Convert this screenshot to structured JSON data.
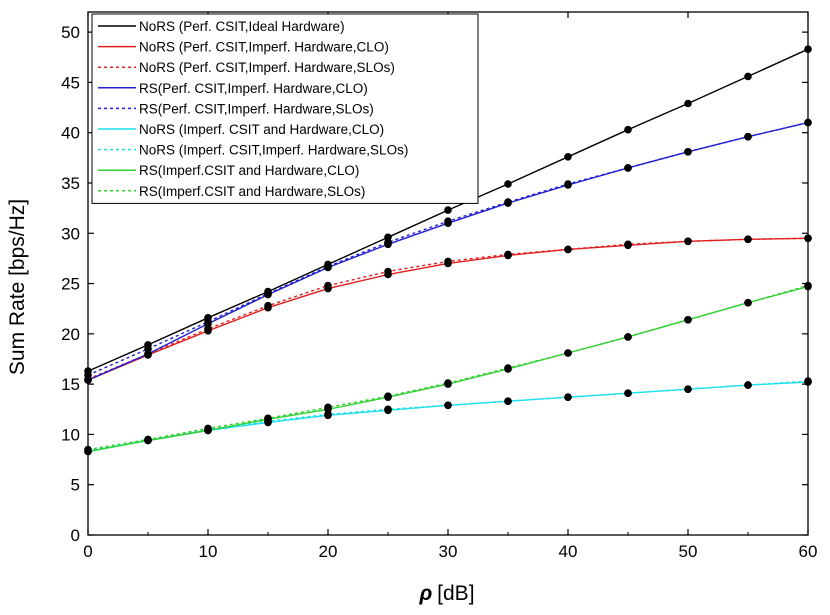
{
  "chart_data": {
    "type": "line",
    "title": "",
    "xlabel": "ρ [dB]",
    "xlabel_symbol": "ρ",
    "xlabel_unit": "[dB]",
    "ylabel": "Sum Rate [bps/Hz]",
    "xlim": [
      0,
      60
    ],
    "ylim": [
      0,
      52
    ],
    "xticks": [
      0,
      10,
      20,
      30,
      40,
      50,
      60
    ],
    "yticks": [
      0,
      5,
      10,
      15,
      20,
      25,
      30,
      35,
      40,
      45,
      50
    ],
    "grid": false,
    "legend_position": "top-left",
    "x": [
      0,
      5,
      10,
      15,
      20,
      25,
      30,
      35,
      40,
      45,
      50,
      55,
      60
    ],
    "series": [
      {
        "name": "NoRS (Perf. CSIT,Ideal Hardware)",
        "color": "#000000",
        "dashed": false,
        "values": [
          16.3,
          18.9,
          21.6,
          24.2,
          26.9,
          29.6,
          32.3,
          34.9,
          37.6,
          40.3,
          42.9,
          45.6,
          48.3
        ]
      },
      {
        "name": "NoRS (Perf. CSIT,Imperf. Hardware,CLO)",
        "color": "#e02020",
        "dashed": false,
        "values": [
          15.4,
          17.9,
          20.3,
          22.6,
          24.5,
          25.9,
          27.0,
          27.8,
          28.4,
          28.8,
          29.2,
          29.4,
          29.5
        ]
      },
      {
        "name": "NoRS (Perf. CSIT,Imperf. Hardware,SLOs)",
        "color": "#e02020",
        "dashed": true,
        "values": [
          15.5,
          18.0,
          20.5,
          22.8,
          24.8,
          26.2,
          27.2,
          27.9,
          28.4,
          28.9,
          29.2,
          29.4,
          29.5
        ]
      },
      {
        "name": "RS(Perf. CSIT,Imperf. Hardware,CLO)",
        "color": "#2020d0",
        "dashed": false,
        "values": [
          15.4,
          18.0,
          21.0,
          23.9,
          26.6,
          28.9,
          31.0,
          33.0,
          34.8,
          36.5,
          38.1,
          39.6,
          41.0
        ]
      },
      {
        "name": "RS(Perf. CSIT,Imperf. Hardware,SLOs)",
        "color": "#2020d0",
        "dashed": true,
        "values": [
          15.9,
          18.5,
          21.2,
          24.0,
          26.7,
          29.1,
          31.2,
          33.1,
          34.9,
          36.5,
          38.1,
          39.6,
          41.0
        ]
      },
      {
        "name": "NoRS (Imperf. CSIT and Hardware,CLO)",
        "color": "#1ee0ee",
        "dashed": false,
        "values": [
          8.3,
          9.4,
          10.4,
          11.2,
          11.9,
          12.4,
          12.9,
          13.3,
          13.7,
          14.1,
          14.5,
          14.9,
          15.2
        ]
      },
      {
        "name": "NoRS (Imperf. CSIT,Imperf. Hardware,SLOs)",
        "color": "#1ee0ee",
        "dashed": true,
        "values": [
          8.4,
          9.5,
          10.5,
          11.3,
          12.0,
          12.5,
          12.9,
          13.3,
          13.7,
          14.1,
          14.5,
          14.9,
          15.3
        ]
      },
      {
        "name": "RS(Imperf.CSIT and Hardware,CLO)",
        "color": "#30d030",
        "dashed": false,
        "values": [
          8.3,
          9.4,
          10.4,
          11.5,
          12.5,
          13.7,
          15.0,
          16.5,
          18.1,
          19.7,
          21.4,
          23.1,
          24.7
        ]
      },
      {
        "name": "RS(Imperf.CSIT and Hardware,SLOs)",
        "color": "#30d030",
        "dashed": true,
        "values": [
          8.5,
          9.5,
          10.6,
          11.6,
          12.7,
          13.8,
          15.1,
          16.6,
          18.1,
          19.7,
          21.4,
          23.1,
          24.8
        ]
      }
    ]
  }
}
